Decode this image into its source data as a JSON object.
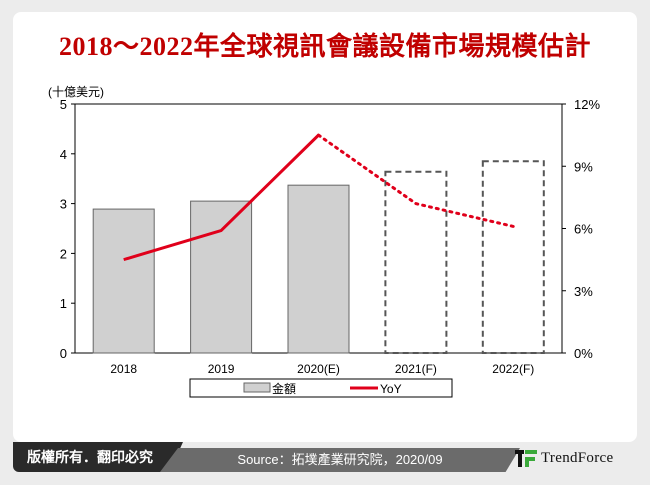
{
  "title": "2018～2022年全球視訊會議設備市場規模估計",
  "chart_data": {
    "type": "bar+line",
    "categories": [
      "2018",
      "2019",
      "2020(E)",
      "2021(F)",
      "2022(F)"
    ],
    "left_axis": {
      "label": "(十億美元)",
      "range": [
        0,
        5
      ],
      "ticks": [
        "0",
        "1",
        "2",
        "3",
        "4",
        "5"
      ]
    },
    "right_axis": {
      "range": [
        0,
        12
      ],
      "ticks": [
        "0%",
        "3%",
        "6%",
        "9%",
        "12%"
      ]
    },
    "series": [
      {
        "name": "金額",
        "type": "bar",
        "axis": "left",
        "values": [
          2.89,
          3.05,
          3.37,
          3.64,
          3.85
        ],
        "forecast_from_index": 3,
        "color": "#d0d0d0"
      },
      {
        "name": "YoY",
        "type": "line",
        "axis": "right",
        "values": [
          4.5,
          5.9,
          10.5,
          7.2,
          6.1
        ],
        "unit": "%",
        "forecast_from_index": 2,
        "color": "#e0001b"
      }
    ],
    "legend": "bottom",
    "grid": false
  },
  "footer": {
    "copyright": "版權所有．翻印必究",
    "source": "Source：拓墣產業研究院，2020/09",
    "brand": "TrendForce"
  }
}
